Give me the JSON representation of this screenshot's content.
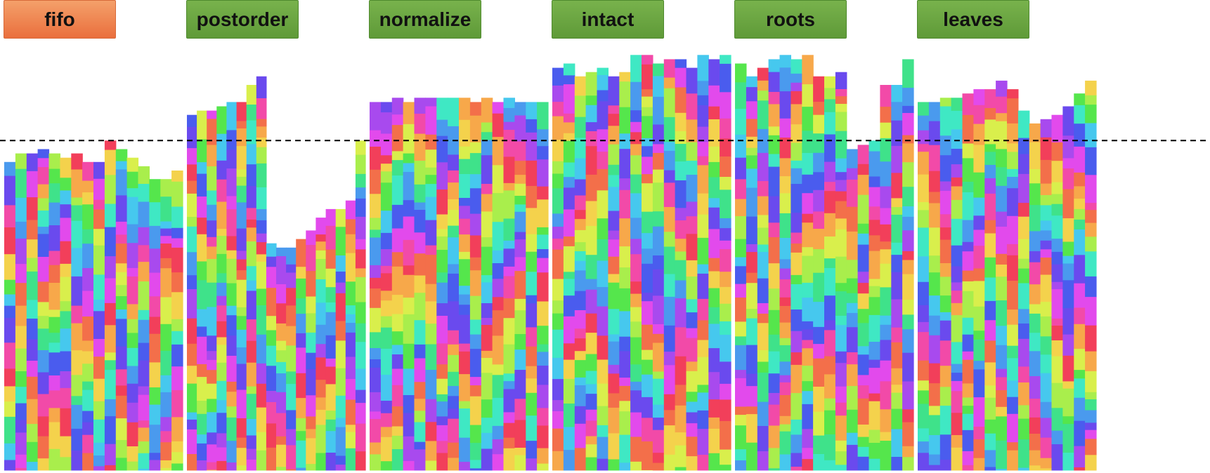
{
  "tabs": [
    {
      "label": "fifo",
      "style": "orange"
    },
    {
      "label": "postorder",
      "style": "green"
    },
    {
      "label": "normalize",
      "style": "green"
    },
    {
      "label": "intact",
      "style": "green"
    },
    {
      "label": "roots",
      "style": "green"
    },
    {
      "label": "leaves",
      "style": "green"
    }
  ],
  "colors": {
    "tab_green": "#6aa642",
    "tab_orange": "#ef8450",
    "reference_line": "#000000",
    "palette": [
      "#f23f5a",
      "#f36f4a",
      "#f7a84a",
      "#f4d24c",
      "#d9ef4c",
      "#a9ee4c",
      "#55e64c",
      "#3fe28a",
      "#3fe8c4",
      "#46c8ee",
      "#4a9aee",
      "#4a5cee",
      "#6a4aee",
      "#a84aee",
      "#e24aec",
      "#f24aa8"
    ]
  },
  "chart_data": {
    "type": "bar",
    "description_free": true,
    "ylim": [
      0,
      100
    ],
    "reference_line_y": 77,
    "panels": [
      {
        "name": "fifo",
        "column_tops": [
          72,
          74,
          74,
          75,
          74,
          73,
          74,
          72,
          72,
          77,
          75,
          73,
          71,
          68,
          68,
          70
        ]
      },
      {
        "name": "postorder",
        "column_tops": [
          83,
          84,
          84,
          85,
          86,
          86,
          90,
          92,
          53,
          52,
          52,
          54,
          56,
          59,
          61,
          61,
          63,
          77
        ]
      },
      {
        "name": "normalize",
        "column_tops": [
          86,
          86,
          87,
          86,
          87,
          87,
          87,
          87,
          87,
          86,
          87,
          86,
          87,
          86,
          86,
          86
        ]
      },
      {
        "name": "intact",
        "column_tops": [
          94,
          95,
          92,
          93,
          94,
          92,
          93,
          97,
          97,
          95,
          96,
          96,
          94,
          97,
          96,
          97
        ]
      },
      {
        "name": "roots",
        "column_tops": [
          95,
          92,
          94,
          96,
          97,
          96,
          97,
          92,
          92,
          93,
          75,
          76,
          77,
          90,
          90,
          96
        ]
      },
      {
        "name": "leaves",
        "column_tops": [
          86,
          86,
          87,
          87,
          88,
          89,
          89,
          91,
          89,
          84,
          81,
          82,
          83,
          85,
          88,
          91
        ]
      }
    ]
  }
}
